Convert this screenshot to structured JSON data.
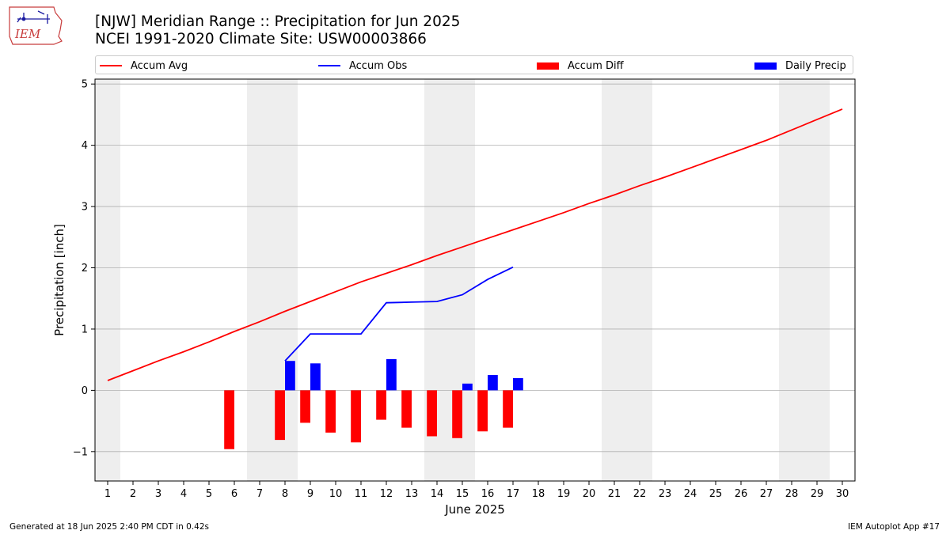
{
  "header": {
    "title_line1": "[NJW] Meridian Range :: Precipitation for Jun 2025",
    "title_line2": "NCEI 1991-2020 Climate Site: USW00003866",
    "logo_text": "IEM"
  },
  "footer": {
    "generated": "Generated at 18 Jun 2025 2:40 PM CDT in 0.42s",
    "app": "IEM Autoplot App #17"
  },
  "colors": {
    "avg": "#ff0000",
    "obs": "#0000ff",
    "diff": "#ff0000",
    "daily": "#0000ff",
    "weekend_band": "#eeeeee",
    "grid": "#b0b0b0"
  },
  "chart_data": {
    "type": "bar",
    "xlabel": "June 2025",
    "ylabel": "Precipitation [inch]",
    "xlim": [
      0.5,
      30.5
    ],
    "ylim": [
      -1.48,
      5.08
    ],
    "x_ticks": [
      1,
      2,
      3,
      4,
      5,
      6,
      7,
      8,
      9,
      10,
      11,
      12,
      13,
      14,
      15,
      16,
      17,
      18,
      19,
      20,
      21,
      22,
      23,
      24,
      25,
      26,
      27,
      28,
      29,
      30
    ],
    "y_ticks": [
      -1,
      0,
      1,
      2,
      3,
      4,
      5
    ],
    "y_tick_labels": [
      "−1",
      "0",
      "1",
      "2",
      "3",
      "4",
      "5"
    ],
    "grid": "horizontal",
    "legend_position": "top",
    "weekend_days": [
      1,
      7,
      8,
      14,
      15,
      21,
      22,
      28,
      29
    ],
    "series": [
      {
        "name": "Accum Avg",
        "kind": "line",
        "x": [
          1,
          2,
          3,
          4,
          5,
          6,
          7,
          8,
          9,
          10,
          11,
          12,
          13,
          14,
          15,
          16,
          17,
          18,
          19,
          20,
          21,
          22,
          23,
          24,
          25,
          26,
          27,
          28,
          29,
          30
        ],
        "values": [
          0.16,
          0.32,
          0.48,
          0.63,
          0.79,
          0.96,
          1.12,
          1.29,
          1.45,
          1.61,
          1.77,
          1.91,
          2.05,
          2.2,
          2.34,
          2.48,
          2.62,
          2.76,
          2.9,
          3.05,
          3.19,
          3.34,
          3.48,
          3.63,
          3.78,
          3.93,
          4.08,
          4.25,
          4.42,
          4.59
        ]
      },
      {
        "name": "Accum Obs",
        "kind": "line",
        "x": [
          8,
          9,
          10,
          11,
          12,
          13,
          14,
          15,
          16,
          17
        ],
        "values": [
          0.48,
          0.92,
          0.92,
          0.92,
          1.43,
          1.44,
          1.45,
          1.56,
          1.81,
          2.01
        ]
      },
      {
        "name": "Accum Diff",
        "kind": "bar",
        "x": [
          6,
          8,
          9,
          10,
          11,
          12,
          13,
          14,
          15,
          16,
          17
        ],
        "values": [
          -0.96,
          -0.81,
          -0.53,
          -0.69,
          -0.85,
          -0.48,
          -0.61,
          -0.75,
          -0.78,
          -0.67,
          -0.61
        ]
      },
      {
        "name": "Daily Precip",
        "kind": "bar",
        "x": [
          8,
          9,
          12,
          15,
          16,
          17
        ],
        "values": [
          0.48,
          0.44,
          0.51,
          0.11,
          0.25,
          0.2
        ]
      }
    ]
  }
}
